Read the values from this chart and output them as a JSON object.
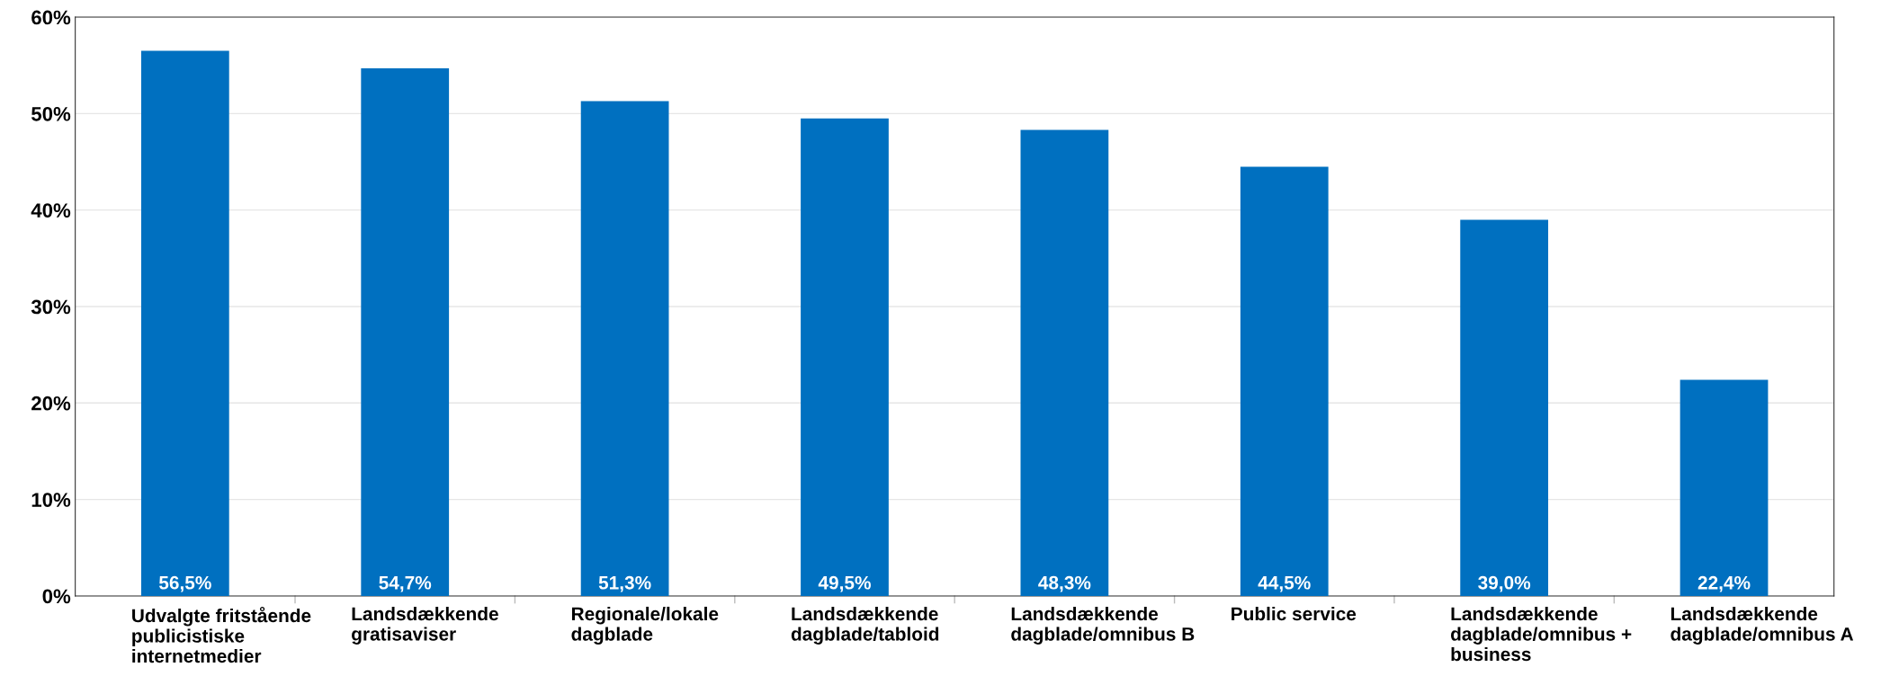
{
  "chart_data": {
    "type": "bar",
    "categories": [
      "Udvalgte fritstående publicistiske internetmedier",
      "Landsdækkende gratisaviser",
      "Regionale/lokale dagblade",
      "Landsdækkende dagblade/tabloid",
      "Landsdækkende dagblade/omnibus B",
      "Public service",
      "Landsdækkende dagblade/omnibus + business",
      "Landsdækkende dagblade/omnibus A"
    ],
    "values": [
      56.5,
      54.7,
      51.3,
      49.5,
      48.3,
      44.5,
      39.0,
      22.4
    ],
    "value_labels": [
      "56,5%",
      "54,7%",
      "51,3%",
      "49,5%",
      "48,3%",
      "44,5%",
      "39,0%",
      "22,4%"
    ],
    "color": "#0070c0",
    "ylim": [
      0,
      60
    ],
    "yticks": [
      {
        "value": 0,
        "label": "0%"
      },
      {
        "value": 10,
        "label": "10%"
      },
      {
        "value": 20,
        "label": "20%"
      },
      {
        "value": 30,
        "label": "30%"
      },
      {
        "value": 40,
        "label": "40%"
      },
      {
        "value": 50,
        "label": "50%"
      },
      {
        "value": 60,
        "label": "60%"
      }
    ],
    "grid": "y",
    "legend": false
  }
}
